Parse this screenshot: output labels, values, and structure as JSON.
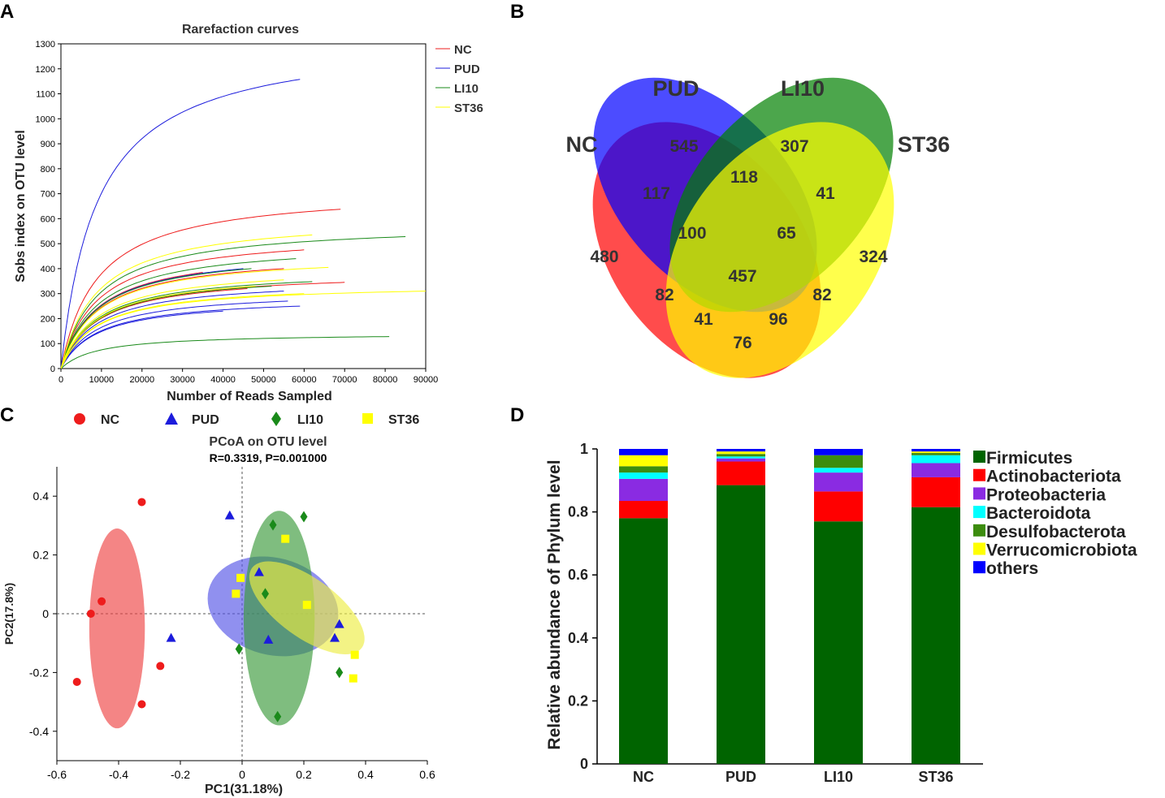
{
  "panels": {
    "A": "A",
    "B": "B",
    "C": "C",
    "D": "D"
  },
  "colors": {
    "NC": "#ee1c1c",
    "PUD": "#1c1cdc",
    "LI10": "#1a8a1a",
    "ST36": "#ffff00",
    "axis": "#000000"
  },
  "chart_data": [
    {
      "panel": "A",
      "type": "line",
      "title": "Rarefaction curves",
      "xlabel": "Number of Reads Sampled",
      "ylabel": "Sobs index on OTU level",
      "xlim": [
        0,
        90000
      ],
      "ylim": [
        0,
        1300
      ],
      "xticks": [
        0,
        10000,
        20000,
        30000,
        40000,
        50000,
        60000,
        70000,
        80000,
        90000
      ],
      "yticks": [
        0,
        100,
        200,
        300,
        400,
        500,
        600,
        700,
        800,
        900,
        1000,
        1100,
        1200,
        1300
      ],
      "legend": [
        "NC",
        "PUD",
        "LI10",
        "ST36"
      ],
      "series": [
        {
          "group": "NC",
          "xmax": 69000,
          "final": 638
        },
        {
          "group": "NC",
          "xmax": 60000,
          "final": 475
        },
        {
          "group": "NC",
          "xmax": 55000,
          "final": 400
        },
        {
          "group": "NC",
          "xmax": 70000,
          "final": 345
        },
        {
          "group": "NC",
          "xmax": 46000,
          "final": 320
        },
        {
          "group": "NC",
          "xmax": 35000,
          "final": 385
        },
        {
          "group": "PUD",
          "xmax": 59000,
          "final": 1158
        },
        {
          "group": "PUD",
          "xmax": 45000,
          "final": 400
        },
        {
          "group": "PUD",
          "xmax": 55000,
          "final": 310
        },
        {
          "group": "PUD",
          "xmax": 56000,
          "final": 270
        },
        {
          "group": "PUD",
          "xmax": 59000,
          "final": 250
        },
        {
          "group": "PUD",
          "xmax": 40000,
          "final": 230
        },
        {
          "group": "LI10",
          "xmax": 85000,
          "final": 528
        },
        {
          "group": "LI10",
          "xmax": 58000,
          "final": 440
        },
        {
          "group": "LI10",
          "xmax": 62000,
          "final": 348
        },
        {
          "group": "LI10",
          "xmax": 81000,
          "final": 128
        },
        {
          "group": "LI10",
          "xmax": 47000,
          "final": 400
        },
        {
          "group": "LI10",
          "xmax": 52000,
          "final": 330
        },
        {
          "group": "ST36",
          "xmax": 62000,
          "final": 535
        },
        {
          "group": "ST36",
          "xmax": 66000,
          "final": 405
        },
        {
          "group": "ST36",
          "xmax": 90000,
          "final": 310
        },
        {
          "group": "ST36",
          "xmax": 55000,
          "final": 355
        },
        {
          "group": "ST36",
          "xmax": 48000,
          "final": 330
        },
        {
          "group": "ST36",
          "xmax": 60000,
          "final": 300
        }
      ]
    },
    {
      "panel": "B",
      "type": "venn",
      "sets": [
        "NC",
        "PUD",
        "LI10",
        "ST36"
      ],
      "regions": [
        {
          "sets": [
            "NC"
          ],
          "value": 480
        },
        {
          "sets": [
            "PUD"
          ],
          "value": 545
        },
        {
          "sets": [
            "LI10"
          ],
          "value": 307
        },
        {
          "sets": [
            "ST36"
          ],
          "value": 324
        },
        {
          "sets": [
            "NC",
            "PUD"
          ],
          "value": 117
        },
        {
          "sets": [
            "PUD",
            "LI10"
          ],
          "value": 118
        },
        {
          "sets": [
            "LI10",
            "ST36"
          ],
          "value": 41
        },
        {
          "sets": [
            "NC",
            "PUD",
            "LI10"
          ],
          "value": 100
        },
        {
          "sets": [
            "PUD",
            "LI10",
            "ST36"
          ],
          "value": 65
        },
        {
          "sets": [
            "NC",
            "PUD",
            "LI10",
            "ST36"
          ],
          "value": 457
        },
        {
          "sets": [
            "NC",
            "LI10"
          ],
          "value": 82
        },
        {
          "sets": [
            "PUD",
            "ST36"
          ],
          "value": 82
        },
        {
          "sets": [
            "NC",
            "LI10",
            "ST36"
          ],
          "value": 41
        },
        {
          "sets": [
            "NC",
            "PUD",
            "ST36"
          ],
          "value": 96
        },
        {
          "sets": [
            "NC",
            "ST36"
          ],
          "value": 76
        }
      ]
    },
    {
      "panel": "C",
      "type": "scatter",
      "title": "PCoA on OTU level",
      "subtitle": "R=0.3319, P=0.001000",
      "xlabel": "PC1(31.18%)",
      "ylabel": "PC2(17.8%)",
      "xlim": [
        -0.6,
        0.6
      ],
      "ylim": [
        -0.5,
        0.5
      ],
      "xticks": [
        "-0.6",
        "-0.4",
        "-0.2",
        "0",
        "0.2",
        "0.4",
        "0.6"
      ],
      "yticks": [
        "-0.4",
        "-0.2",
        "0",
        "0.2",
        "0.4"
      ],
      "legend": [
        "NC",
        "PUD",
        "LI10",
        "ST36"
      ],
      "series": [
        {
          "name": "NC",
          "marker": "circle",
          "points": [
            [
              -0.325,
              0.38
            ],
            [
              -0.455,
              0.042
            ],
            [
              -0.49,
              0.0
            ],
            [
              -0.265,
              -0.178
            ],
            [
              -0.535,
              -0.232
            ],
            [
              -0.325,
              -0.308
            ]
          ],
          "ellipse": {
            "cx": -0.405,
            "cy": -0.05,
            "rx": 0.09,
            "ry": 0.34,
            "angle": 0
          }
        },
        {
          "name": "PUD",
          "marker": "triangle",
          "points": [
            [
              -0.04,
              0.335
            ],
            [
              0.055,
              0.142
            ],
            [
              -0.23,
              -0.082
            ],
            [
              0.085,
              -0.088
            ],
            [
              0.315,
              -0.035
            ],
            [
              0.3,
              -0.082
            ]
          ],
          "ellipse": {
            "cx": 0.1,
            "cy": 0.025,
            "rx": 0.215,
            "ry": 0.165,
            "angle": 15
          }
        },
        {
          "name": "LI10",
          "marker": "diamond",
          "points": [
            [
              0.1,
              0.302
            ],
            [
              0.2,
              0.33
            ],
            [
              0.075,
              0.068
            ],
            [
              -0.01,
              -0.12
            ],
            [
              0.315,
              -0.2
            ],
            [
              0.115,
              -0.35
            ]
          ],
          "ellipse": {
            "cx": 0.12,
            "cy": -0.015,
            "rx": 0.115,
            "ry": 0.365,
            "angle": 0
          }
        },
        {
          "name": "ST36",
          "marker": "square",
          "points": [
            [
              0.14,
              0.255
            ],
            [
              -0.005,
              0.122
            ],
            [
              -0.02,
              0.068
            ],
            [
              0.21,
              0.03
            ],
            [
              0.365,
              -0.14
            ],
            [
              0.36,
              -0.22
            ]
          ],
          "ellipse": {
            "cx": 0.21,
            "cy": 0.02,
            "rx": 0.22,
            "ry": 0.1,
            "angle": 36
          }
        }
      ]
    },
    {
      "panel": "D",
      "type": "bar",
      "stacked": true,
      "ylabel": "Relative abundance of  Phylum level",
      "ylim": [
        0,
        1
      ],
      "yticks": [
        "0",
        "0.2",
        "0.4",
        "0.6",
        "0.8",
        "1"
      ],
      "categories": [
        "NC",
        "PUD",
        "LI10",
        "ST36"
      ],
      "series": [
        {
          "name": "Firmicutes",
          "color": "#006400",
          "values": [
            0.78,
            0.885,
            0.77,
            0.815
          ]
        },
        {
          "name": "Actinobacteriota",
          "color": "#ff0000",
          "values": [
            0.055,
            0.075,
            0.095,
            0.095
          ]
        },
        {
          "name": "Proteobacteria",
          "color": "#8a2be2",
          "values": [
            0.07,
            0.01,
            0.06,
            0.045
          ]
        },
        {
          "name": "Bacteroidota",
          "color": "#00ffff",
          "values": [
            0.02,
            0.006,
            0.015,
            0.025
          ]
        },
        {
          "name": "Desulfobacterota",
          "color": "#3c8c0e",
          "values": [
            0.02,
            0.008,
            0.04,
            0.007
          ]
        },
        {
          "name": "Verrucomicrobiota",
          "color": "#ffff00",
          "values": [
            0.035,
            0.008,
            0.0,
            0.005
          ]
        },
        {
          "name": "others",
          "color": "#0000ff",
          "values": [
            0.02,
            0.008,
            0.02,
            0.008
          ]
        }
      ]
    }
  ]
}
